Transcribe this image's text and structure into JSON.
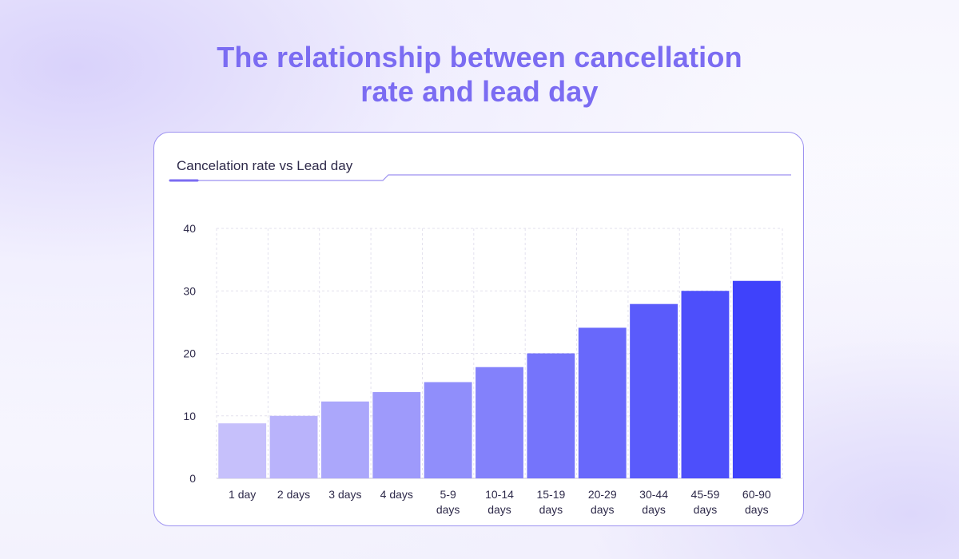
{
  "page": {
    "title_line1": "The relationship between cancellation",
    "title_line2": "rate and  lead day"
  },
  "colors": {
    "title": "#7b6cf2",
    "card_border": "#9c91f0",
    "accent": "#7b6cf2",
    "bar_start": "#c6c0fb",
    "bar_end": "#3f42fb"
  },
  "chart_data": {
    "type": "bar",
    "title": "Cancelation rate vs Lead day",
    "categories": [
      [
        "1 day"
      ],
      [
        "2 days"
      ],
      [
        "3 days"
      ],
      [
        "4 days"
      ],
      [
        "5-9",
        "days"
      ],
      [
        "10-14",
        "days"
      ],
      [
        "15-19",
        "days"
      ],
      [
        "20-29",
        "days"
      ],
      [
        "30-44",
        "days"
      ],
      [
        "45-59",
        "days"
      ],
      [
        "60-90",
        "days"
      ]
    ],
    "values": [
      8.8,
      10,
      12.3,
      13.8,
      15.4,
      17.8,
      20,
      24.1,
      27.9,
      30,
      31.6
    ],
    "ylim": [
      0,
      40
    ],
    "yticks": [
      0,
      10,
      20,
      30,
      40
    ],
    "xlabel": "",
    "ylabel": "",
    "grid": true,
    "legend": "none"
  }
}
